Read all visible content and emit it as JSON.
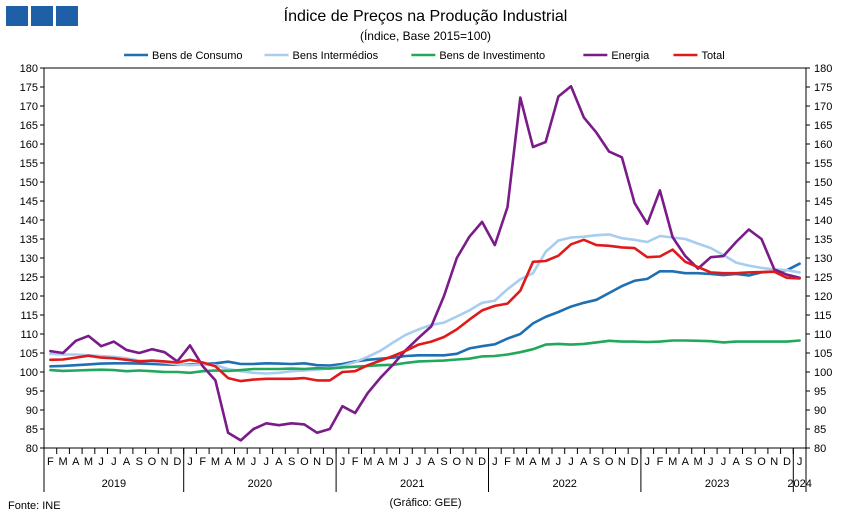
{
  "chart_data": {
    "type": "line",
    "title": "Índice de Preços na Produção Industrial",
    "subtitle": "(Índice, Base 2015=100)",
    "ylim": [
      80,
      180
    ],
    "ytick_step": 5,
    "legend_position": "top",
    "month_labels": [
      "F",
      "M",
      "A",
      "M",
      "J",
      "J",
      "A",
      "S",
      "O",
      "N",
      "D",
      "J",
      "F",
      "M",
      "A",
      "M",
      "J",
      "J",
      "A",
      "S",
      "O",
      "N",
      "D",
      "J",
      "F",
      "M",
      "A",
      "M",
      "J",
      "J",
      "A",
      "S",
      "O",
      "N",
      "D",
      "J",
      "F",
      "M",
      "A",
      "M",
      "J",
      "J",
      "A",
      "S",
      "O",
      "N",
      "D",
      "J",
      "F",
      "M",
      "A",
      "M",
      "J",
      "J",
      "A",
      "S",
      "O",
      "N",
      "D",
      "J"
    ],
    "years": [
      {
        "label": "2019",
        "start": 0,
        "end": 11
      },
      {
        "label": "2020",
        "start": 11,
        "end": 23
      },
      {
        "label": "2021",
        "start": 23,
        "end": 35
      },
      {
        "label": "2022",
        "start": 35,
        "end": 47
      },
      {
        "label": "2023",
        "start": 47,
        "end": 59
      },
      {
        "label": "2024",
        "start": 59,
        "end": 60
      }
    ],
    "series": [
      {
        "name": "Bens de Consumo",
        "color": "#1f6fb2",
        "values": [
          101.5,
          101.6,
          101.8,
          102.0,
          102.2,
          102.3,
          102.3,
          102.2,
          102.1,
          102.0,
          101.9,
          102.0,
          102.1,
          102.3,
          102.7,
          102.1,
          102.1,
          102.3,
          102.2,
          102.1,
          102.3,
          101.8,
          101.7,
          102.1,
          102.8,
          103.2,
          103.5,
          103.8,
          104.2,
          104.4,
          104.4,
          104.4,
          104.8,
          106.2,
          106.8,
          107.3,
          108.8,
          110.0,
          112.8,
          114.5,
          115.8,
          117.2,
          118.2,
          119.0,
          120.8,
          122.6,
          124.0,
          124.5,
          126.5,
          126.5,
          126.0,
          126.0,
          125.8,
          125.5,
          125.8,
          125.4,
          126.2,
          126.5,
          126.8,
          128.5
        ]
      },
      {
        "name": "Bens Intermédios",
        "color": "#a9cdef",
        "values": [
          104.8,
          104.6,
          104.6,
          104.4,
          104.2,
          104.0,
          103.6,
          103.0,
          102.8,
          102.5,
          102.0,
          101.8,
          102.0,
          101.8,
          100.8,
          100.2,
          99.8,
          99.6,
          99.8,
          100.2,
          100.4,
          100.6,
          101.0,
          101.6,
          102.6,
          104.0,
          105.6,
          107.8,
          109.8,
          111.2,
          112.4,
          113.0,
          114.6,
          116.2,
          118.2,
          118.8,
          121.8,
          124.4,
          126.0,
          131.6,
          134.6,
          135.4,
          135.6,
          136.0,
          136.2,
          135.2,
          134.8,
          134.2,
          135.8,
          135.4,
          135.0,
          133.8,
          132.6,
          130.8,
          128.8,
          128.0,
          127.4,
          127.0,
          126.8,
          126.2
        ]
      },
      {
        "name": "Bens de Investimento",
        "color": "#21a85a",
        "values": [
          100.5,
          100.3,
          100.4,
          100.5,
          100.6,
          100.5,
          100.2,
          100.4,
          100.2,
          100.0,
          100.0,
          99.8,
          100.2,
          100.4,
          100.3,
          100.5,
          100.8,
          100.8,
          100.8,
          100.9,
          100.8,
          101.0,
          100.9,
          101.2,
          101.4,
          101.6,
          101.8,
          101.9,
          102.4,
          102.8,
          102.9,
          103.0,
          103.3,
          103.5,
          104.1,
          104.2,
          104.6,
          105.2,
          106.0,
          107.2,
          107.4,
          107.2,
          107.4,
          107.8,
          108.2,
          108.0,
          108.0,
          107.9,
          108.0,
          108.3,
          108.3,
          108.2,
          108.1,
          107.8,
          108.0,
          108.0,
          108.0,
          108.0,
          108.0,
          108.3
        ]
      },
      {
        "name": "Energia",
        "color": "#7b1b8a",
        "values": [
          105.5,
          105.0,
          108.2,
          109.5,
          106.8,
          108.0,
          105.8,
          105.0,
          106.0,
          105.2,
          102.8,
          107.0,
          101.5,
          97.8,
          84.0,
          82.0,
          85.0,
          86.5,
          86.0,
          86.5,
          86.2,
          84.0,
          85.0,
          91.0,
          89.2,
          94.5,
          98.5,
          102.0,
          105.8,
          109.0,
          112.0,
          120.0,
          130.0,
          135.6,
          139.5,
          133.4,
          143.4,
          172.2,
          159.2,
          160.5,
          172.5,
          175.2,
          167.0,
          163.0,
          158.0,
          156.5,
          144.5,
          139.0,
          147.8,
          135.5,
          130.5,
          127.2,
          130.2,
          130.5,
          134.2,
          137.5,
          135.0,
          127.0,
          125.6,
          124.8
        ]
      },
      {
        "name": "Total",
        "color": "#e01a1a",
        "values": [
          103.2,
          103.3,
          103.8,
          104.3,
          103.8,
          103.6,
          103.2,
          102.8,
          103.0,
          102.8,
          102.5,
          103.2,
          102.5,
          101.5,
          98.4,
          97.6,
          98.0,
          98.2,
          98.2,
          98.2,
          98.4,
          97.8,
          97.8,
          100.0,
          100.2,
          101.8,
          103.0,
          104.2,
          105.6,
          107.2,
          108.0,
          109.2,
          111.2,
          113.8,
          116.2,
          117.4,
          118.0,
          121.4,
          129.0,
          129.2,
          130.6,
          133.6,
          134.8,
          133.4,
          133.2,
          132.8,
          132.6,
          130.2,
          130.4,
          132.2,
          129.0,
          127.6,
          126.2,
          126.0,
          126.0,
          126.2,
          126.3,
          126.4,
          124.8,
          124.6
        ]
      }
    ]
  },
  "footer": {
    "source": "Fonte: INE",
    "credit": "(Gráfico: GEE)"
  }
}
